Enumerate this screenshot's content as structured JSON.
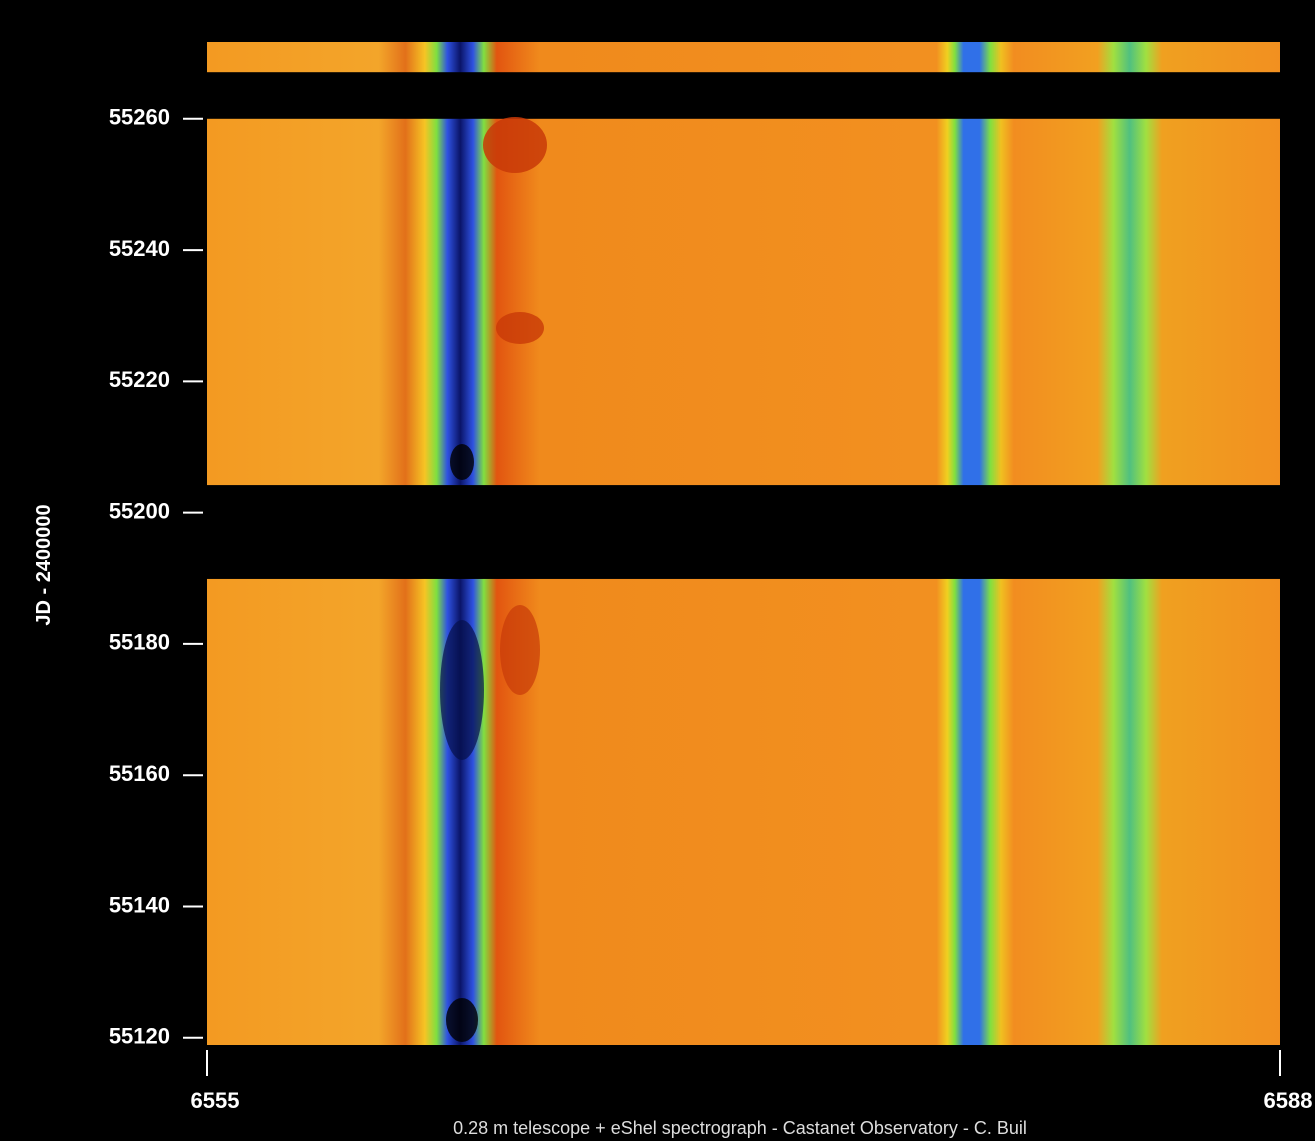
{
  "chart_data": {
    "type": "dynamic-spectrum",
    "ylabel": "JD - 2400000",
    "caption": "0.28 m telescope + eShel spectrograph - Castanet Observatory - C. Buil",
    "xlim": [
      6555,
      6588
    ],
    "xticks": [
      6555,
      6588
    ],
    "ylim": [
      55118.9,
      55271.7
    ],
    "yticks": [
      55120,
      55140,
      55160,
      55180,
      55200,
      55220,
      55240,
      55260
    ],
    "observed_ranges": [
      [
        55267.1,
        55271.7
      ],
      [
        55204.2,
        55260
      ],
      [
        55118.9,
        55189.9
      ]
    ]
  }
}
